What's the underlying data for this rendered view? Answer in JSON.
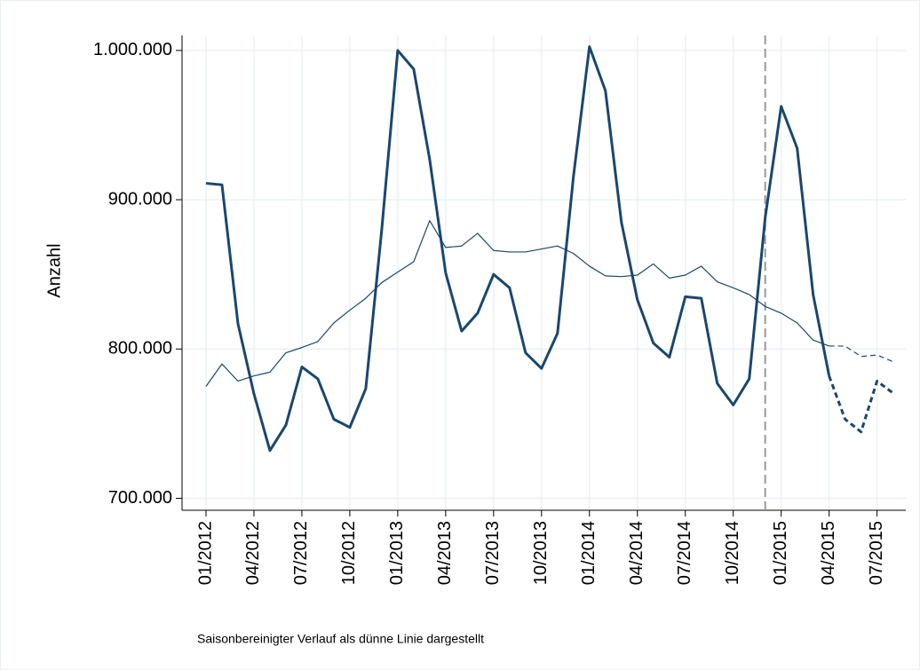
{
  "chart_data": {
    "type": "line",
    "ylabel": "Anzahl",
    "note": "Saisonbereinigter Verlauf als dünne Linie dargestellt",
    "categories": [
      "01/2012",
      null,
      null,
      "04/2012",
      null,
      null,
      "07/2012",
      null,
      null,
      "10/2012",
      null,
      null,
      "01/2013",
      null,
      null,
      "04/2013",
      null,
      null,
      "07/2013",
      null,
      null,
      "10/2013",
      null,
      null,
      "01/2014",
      null,
      null,
      "04/2014",
      null,
      null,
      "07/2014",
      null,
      null,
      "10/2014",
      null,
      null,
      "01/2015",
      null,
      null,
      "04/2015",
      null,
      null,
      "07/2015",
      null
    ],
    "xlim": [
      -1.5,
      43.8
    ],
    "ylim": [
      692000,
      1010000
    ],
    "yticks": [
      {
        "value": 700000,
        "label": "700.000"
      },
      {
        "value": 800000,
        "label": "800.000"
      },
      {
        "value": 900000,
        "label": "900.000"
      },
      {
        "value": 1000000,
        "label": "1.000.000"
      }
    ],
    "grid": true,
    "vline_index": 35,
    "series": [
      {
        "color": "#1a476f",
        "width": 3,
        "style": "solid",
        "values": [
          911000,
          910000,
          817000,
          770000,
          732000,
          749000,
          788000,
          780000,
          753000,
          747500,
          773500,
          880000,
          1000000,
          987500,
          927000,
          851000,
          812000,
          824000,
          850000,
          841000,
          797500,
          787000,
          810500,
          915700,
          1002500,
          973000,
          885000,
          833000,
          804000,
          794500,
          835000,
          834000,
          777000,
          762500,
          780000,
          888000,
          962500,
          934500,
          836500,
          782000,
          null,
          null,
          null,
          null
        ]
      },
      {
        "color": "#1a476f",
        "width": 3,
        "style": "dashed",
        "values": [
          null,
          null,
          null,
          null,
          null,
          null,
          null,
          null,
          null,
          null,
          null,
          null,
          null,
          null,
          null,
          null,
          null,
          null,
          null,
          null,
          null,
          null,
          null,
          null,
          null,
          null,
          null,
          null,
          null,
          null,
          null,
          null,
          null,
          null,
          null,
          null,
          null,
          null,
          null,
          782000,
          753000,
          744500,
          778500,
          770500
        ]
      },
      {
        "color": "#1a476f",
        "width": 1.2,
        "style": "solid",
        "values": [
          775000,
          790000,
          778500,
          782000,
          784500,
          797500,
          801000,
          805000,
          817500,
          826000,
          834000,
          844500,
          851500,
          858500,
          886000,
          868000,
          869000,
          877500,
          866000,
          865000,
          865000,
          867000,
          869000,
          864000,
          855500,
          849000,
          848500,
          849500,
          857000,
          847500,
          849500,
          855500,
          845000,
          841000,
          836500,
          828500,
          824000,
          817500,
          806000,
          802000,
          null,
          null,
          null,
          null
        ]
      },
      {
        "color": "#1a476f",
        "width": 1.2,
        "style": "dashed",
        "values": [
          null,
          null,
          null,
          null,
          null,
          null,
          null,
          null,
          null,
          null,
          null,
          null,
          null,
          null,
          null,
          null,
          null,
          null,
          null,
          null,
          null,
          null,
          null,
          null,
          null,
          null,
          null,
          null,
          null,
          null,
          null,
          null,
          null,
          null,
          null,
          null,
          null,
          null,
          null,
          802000,
          802000,
          795000,
          796000,
          791500
        ]
      }
    ]
  }
}
